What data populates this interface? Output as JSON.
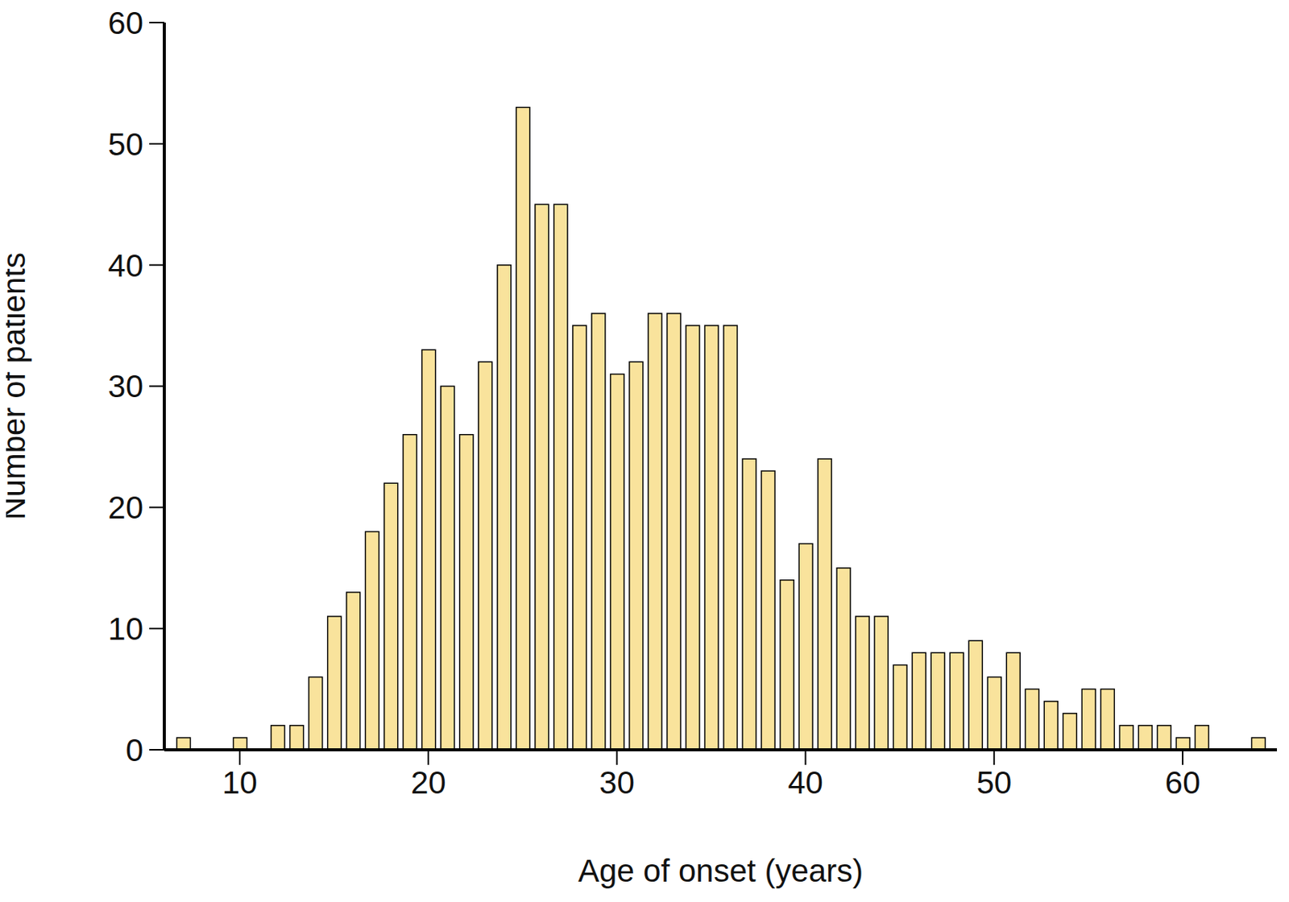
{
  "chart_data": {
    "type": "histogram",
    "xlabel": "Age of onset (years)",
    "ylabel": "Number of patients",
    "bins": [
      6.5,
      7.5,
      8.5,
      9.5,
      10.5,
      11.5,
      12.5,
      13.5,
      14.5,
      15.5,
      16.5,
      17.5,
      18.5,
      19.5,
      20.5,
      21.5,
      22.5,
      23.5,
      24.5,
      25.5,
      26.5,
      27.5,
      28.5,
      29.5,
      30.5,
      31.5,
      32.5,
      33.5,
      34.5,
      35.5,
      36.5,
      37.5,
      38.5,
      39.5,
      40.5,
      41.5,
      42.5,
      43.5,
      44.5,
      45.5,
      46.5,
      47.5,
      48.5,
      49.5,
      50.5,
      51.5,
      52.5,
      53.5,
      54.5,
      55.5,
      56.5,
      57.5,
      58.5,
      59.5,
      60.5,
      61.5,
      62.5,
      63.5,
      64.5
    ],
    "values": [
      1,
      0,
      0,
      1,
      0,
      2,
      2,
      6,
      11,
      13,
      18,
      22,
      26,
      33,
      30,
      26,
      32,
      40,
      53,
      45,
      45,
      35,
      36,
      31,
      32,
      36,
      36,
      35,
      35,
      35,
      24,
      23,
      14,
      17,
      24,
      15,
      11,
      11,
      7,
      8,
      8,
      8,
      9,
      6,
      8,
      5,
      4,
      3,
      5,
      5,
      2,
      2,
      2,
      1,
      2,
      0,
      0,
      1
    ],
    "color": "#f9e39c",
    "xlim": [
      6,
      65
    ],
    "ylim": [
      0,
      60
    ],
    "xticks": [
      10,
      20,
      30,
      40,
      50,
      60
    ],
    "yticks": [
      0,
      10,
      20,
      30,
      40,
      50,
      60
    ],
    "grid": false
  }
}
